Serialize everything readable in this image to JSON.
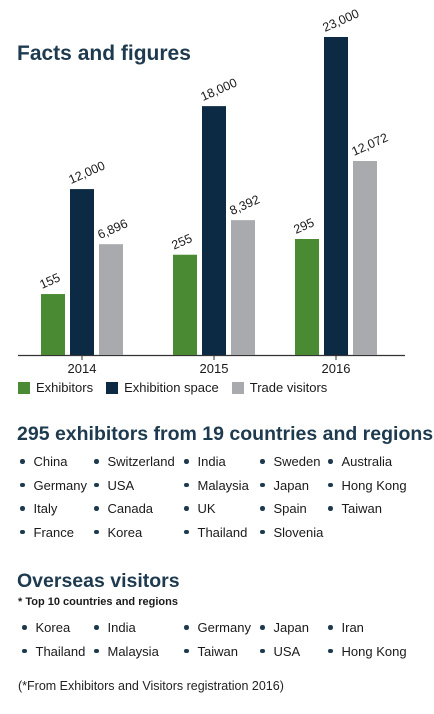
{
  "headings": {
    "facts": "Facts and figures",
    "exhibitors": "295 exhibitors from 19 countries and regions",
    "visitors": "Overseas visitors",
    "visitors_sub": "* Top 10 countries and regions"
  },
  "chart_data": {
    "type": "bar",
    "categories": [
      "2014",
      "2015",
      "2016"
    ],
    "series": [
      {
        "name": "Exhibitors",
        "color": "#4a8a32",
        "values": [
          155,
          255,
          295
        ],
        "labels": [
          "155",
          "255",
          "295"
        ]
      },
      {
        "name": "Exhibition space",
        "color": "#0c2a44",
        "values": [
          12000,
          18000,
          23000
        ],
        "labels": [
          "12,000",
          "18,000",
          "23,000"
        ]
      },
      {
        "name": "Trade visitors",
        "color": "#a8aaad",
        "values": [
          6896,
          8392,
          12072
        ],
        "labels": [
          "6,896",
          "8,392",
          "12,072"
        ]
      }
    ],
    "note": "Bars are drawn on independent scales per series, as in the original infographic"
  },
  "exhibitor_countries": [
    "China",
    "Switzerland",
    "India",
    "Sweden",
    "Australia",
    "Germany",
    "USA",
    "Malaysia",
    "Japan",
    "Hong Kong",
    "Italy",
    "Canada",
    "UK",
    "Spain",
    "Taiwan",
    "France",
    "Korea",
    "Thailand",
    "Slovenia"
  ],
  "visitor_countries": [
    "Korea",
    "India",
    "Germany",
    "Japan",
    "Iran",
    "Thailand",
    "Malaysia",
    "Taiwan",
    "USA",
    "Hong Kong"
  ],
  "footnote": "(*From Exhibitors and Visitors registration 2016)"
}
